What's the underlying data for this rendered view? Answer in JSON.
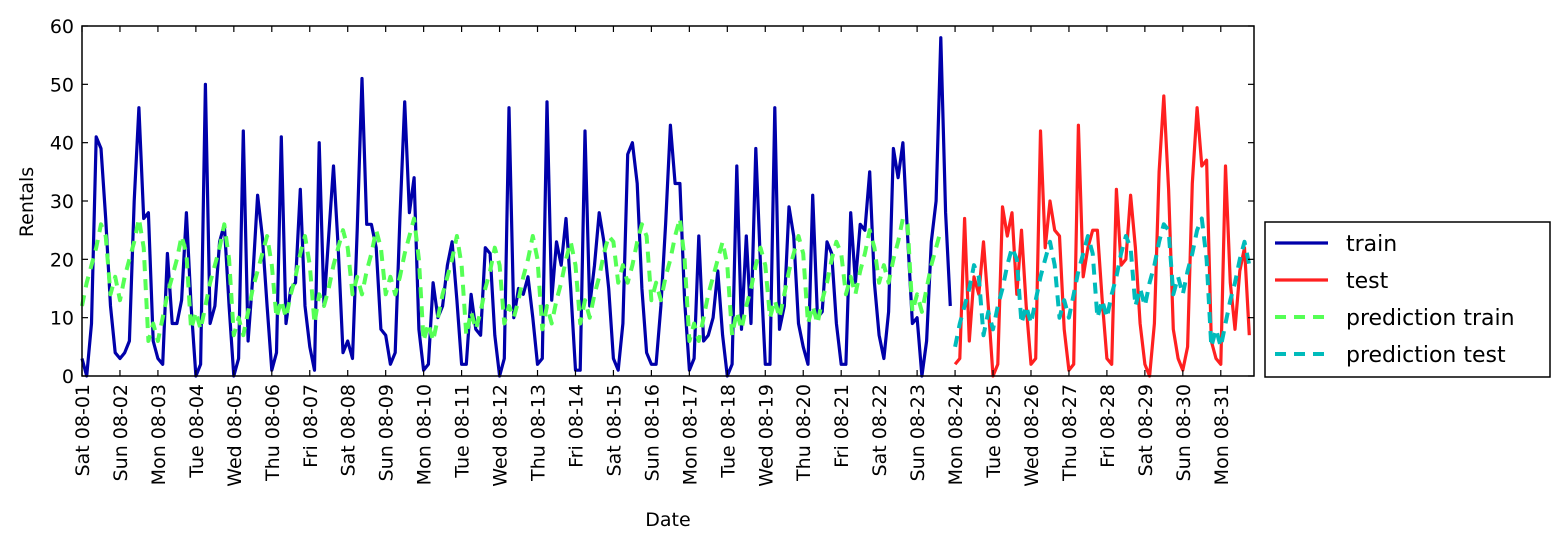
{
  "chart_data": {
    "type": "line",
    "title": "",
    "xlabel": "Date",
    "ylabel": "Rentals",
    "ylim": [
      0,
      60
    ],
    "yticks": [
      "0",
      "10",
      "20",
      "30",
      "40",
      "50",
      "60"
    ],
    "x_range": [
      "2015-08-01 00:00",
      "2015-08-31 21:00"
    ],
    "x_step_hours": 3,
    "x_ticks": [
      "Sat 08-01",
      "Sun 08-02",
      "Mon 08-03",
      "Tue 08-04",
      "Wed 08-05",
      "Thu 08-06",
      "Fri 08-07",
      "Sat 08-08",
      "Sun 08-09",
      "Mon 08-10",
      "Tue 08-11",
      "Wed 08-12",
      "Thu 08-13",
      "Fri 08-14",
      "Sat 08-15",
      "Sun 08-16",
      "Mon 08-17",
      "Tue 08-18",
      "Wed 08-19",
      "Thu 08-20",
      "Fri 08-21",
      "Sat 08-22",
      "Sun 08-23",
      "Mon 08-24",
      "Tue 08-25",
      "Wed 08-26",
      "Thu 08-27",
      "Fri 08-28",
      "Sat 08-29",
      "Sun 08-30",
      "Mon 08-31"
    ],
    "legend_position": "outside-right",
    "grid": false,
    "series": [
      {
        "name": "train",
        "color": "#0000aa",
        "style": "solid",
        "start": "2015-08-01 00:00",
        "values": [
          3,
          0,
          9,
          41,
          39,
          27,
          12,
          4,
          3,
          4,
          6,
          30,
          46,
          27,
          28,
          6,
          3,
          2,
          21,
          9,
          9,
          13,
          28,
          12,
          0,
          2,
          50,
          9,
          12,
          23,
          26,
          12,
          0,
          3,
          42,
          6,
          17,
          31,
          24,
          12,
          1,
          4,
          41,
          9,
          15,
          16,
          32,
          12,
          5,
          1,
          40,
          12,
          24,
          36,
          22,
          4,
          6,
          3,
          25,
          51,
          26,
          26,
          22,
          8,
          7,
          2,
          4,
          27,
          47,
          28,
          34,
          8,
          1,
          2,
          16,
          10,
          12,
          19,
          23,
          13,
          2,
          2,
          14,
          8,
          7,
          22,
          21,
          7,
          0,
          3,
          46,
          10,
          15,
          14,
          17,
          10,
          2,
          3,
          47,
          13,
          23,
          19,
          27,
          15,
          1,
          1,
          42,
          12,
          19,
          28,
          23,
          15,
          3,
          1,
          9,
          38,
          40,
          33,
          15,
          4,
          2,
          2,
          12,
          26,
          43,
          33,
          33,
          13,
          1,
          3,
          24,
          6,
          7,
          10,
          18,
          7,
          0,
          2,
          36,
          8,
          24,
          9,
          39,
          19,
          2,
          2,
          46,
          8,
          12,
          29,
          24,
          9,
          5,
          2,
          31,
          10,
          11,
          23,
          21,
          9,
          2,
          2,
          28,
          16,
          26,
          25,
          35,
          16,
          7,
          3,
          11,
          39,
          34,
          40,
          24,
          9,
          10,
          0,
          6,
          23,
          30,
          58,
          28,
          12
        ]
      },
      {
        "name": "test",
        "color": "#ff2020",
        "style": "solid",
        "start": "2015-08-24 00:00",
        "values": [
          2,
          3,
          27,
          6,
          17,
          14,
          23,
          12,
          0,
          2,
          29,
          24,
          28,
          14,
          25,
          12,
          2,
          3,
          42,
          22,
          30,
          25,
          24,
          8,
          1,
          2,
          43,
          17,
          22,
          25,
          25,
          13,
          3,
          2,
          32,
          19,
          20,
          31,
          22,
          9,
          2,
          0,
          9,
          35,
          48,
          32,
          8,
          3,
          1,
          5,
          33,
          46,
          36,
          37,
          6,
          3,
          2,
          36,
          16,
          8,
          18,
          22,
          7
        ]
      },
      {
        "name": "prediction train",
        "color": "#55ff55",
        "style": "dashed",
        "start": "2015-08-01 00:00",
        "values": [
          12,
          16,
          19,
          22,
          26,
          24,
          14,
          17,
          13,
          17,
          20,
          23,
          27,
          22,
          6,
          9,
          6,
          10,
          14,
          17,
          20,
          24,
          21,
          8,
          11,
          8,
          12,
          16,
          19,
          22,
          26,
          20,
          7,
          10,
          7,
          11,
          15,
          18,
          21,
          24,
          19,
          10,
          13,
          10,
          14,
          17,
          21,
          24,
          19,
          9,
          14,
          12,
          15,
          19,
          22,
          25,
          22,
          14,
          17,
          14,
          18,
          21,
          25,
          22,
          14,
          17,
          14,
          17,
          21,
          24,
          27,
          20,
          6,
          9,
          6,
          10,
          14,
          17,
          20,
          24,
          19,
          7,
          11,
          8,
          11,
          15,
          18,
          22,
          19,
          9,
          12,
          10,
          13,
          17,
          20,
          24,
          20,
          8,
          12,
          9,
          13,
          16,
          20,
          23,
          19,
          9,
          13,
          10,
          14,
          17,
          21,
          24,
          23,
          16,
          19,
          16,
          19,
          23,
          26,
          24,
          13,
          16,
          13,
          17,
          20,
          24,
          27,
          20,
          6,
          9,
          6,
          10,
          14,
          17,
          20,
          23,
          19,
          7,
          11,
          8,
          12,
          15,
          19,
          22,
          19,
          10,
          13,
          10,
          14,
          18,
          21,
          24,
          21,
          9,
          12,
          9,
          13,
          16,
          20,
          23,
          21,
          14,
          17,
          14,
          18,
          21,
          25,
          22,
          16,
          19,
          16,
          20,
          23,
          27,
          26,
          11,
          14,
          11,
          15,
          19,
          22,
          25
        ]
      },
      {
        "name": "prediction test",
        "color": "#00bbbb",
        "style": "dashed",
        "start": "2015-08-24 00:00",
        "values": [
          5,
          9,
          12,
          15,
          19,
          17,
          7,
          11,
          8,
          12,
          15,
          19,
          22,
          20,
          9,
          12,
          9,
          13,
          17,
          20,
          23,
          19,
          10,
          13,
          10,
          14,
          18,
          21,
          24,
          21,
          10,
          13,
          10,
          14,
          17,
          21,
          24,
          22,
          12,
          15,
          12,
          16,
          19,
          23,
          26,
          25,
          14,
          17,
          14,
          18,
          21,
          25,
          27,
          20,
          5,
          8,
          5,
          9,
          13,
          16,
          20,
          23,
          19
        ]
      }
    ]
  }
}
